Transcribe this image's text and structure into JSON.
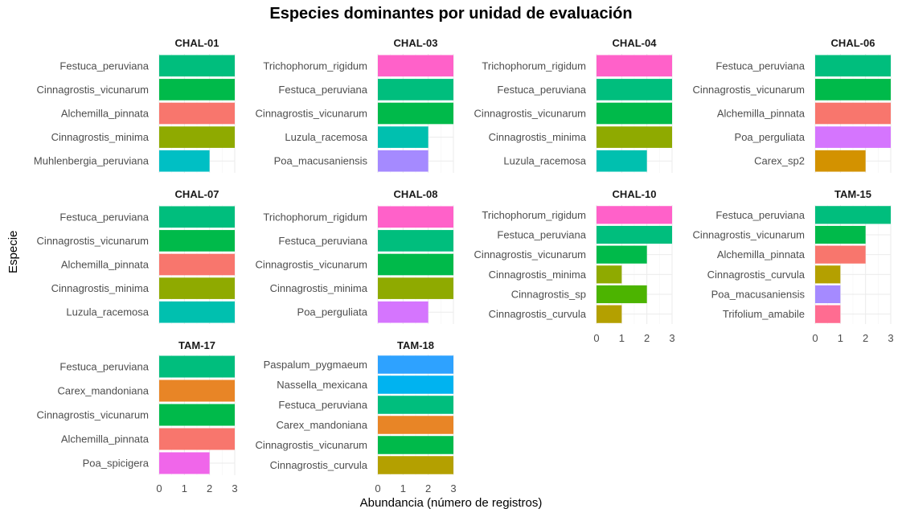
{
  "chart_data": {
    "type": "bar",
    "orientation": "horizontal",
    "title": "Especies dominantes por unidad de evaluación",
    "xlabel": "Abundancia (número de registros)",
    "ylabel": "Especie",
    "xlim": [
      0,
      3
    ],
    "x_ticks": [
      "0",
      "1",
      "2",
      "3"
    ],
    "grid": true,
    "facets": [
      {
        "name": "CHAL-01",
        "categories": [
          "Festuca_peruviana",
          "Cinnagrostis_vicunarum",
          "Alchemilla_pinnata",
          "Cinnagrostis_minima",
          "Muhlenbergia_peruviana"
        ],
        "values": [
          3,
          3,
          3,
          3,
          2
        ]
      },
      {
        "name": "CHAL-03",
        "categories": [
          "Trichophorum_rigidum",
          "Festuca_peruviana",
          "Cinnagrostis_vicunarum",
          "Luzula_racemosa",
          "Poa_macusaniensis"
        ],
        "values": [
          3,
          3,
          3,
          2,
          2
        ]
      },
      {
        "name": "CHAL-04",
        "categories": [
          "Trichophorum_rigidum",
          "Festuca_peruviana",
          "Cinnagrostis_vicunarum",
          "Cinnagrostis_minima",
          "Luzula_racemosa"
        ],
        "values": [
          3,
          3,
          3,
          3,
          2
        ]
      },
      {
        "name": "CHAL-06",
        "categories": [
          "Festuca_peruviana",
          "Cinnagrostis_vicunarum",
          "Alchemilla_pinnata",
          "Poa_perguliata",
          "Carex_sp2"
        ],
        "values": [
          3,
          3,
          3,
          3,
          2
        ]
      },
      {
        "name": "CHAL-07",
        "categories": [
          "Festuca_peruviana",
          "Cinnagrostis_vicunarum",
          "Alchemilla_pinnata",
          "Cinnagrostis_minima",
          "Luzula_racemosa"
        ],
        "values": [
          3,
          3,
          3,
          3,
          3
        ]
      },
      {
        "name": "CHAL-08",
        "categories": [
          "Trichophorum_rigidum",
          "Festuca_peruviana",
          "Cinnagrostis_vicunarum",
          "Cinnagrostis_minima",
          "Poa_perguliata"
        ],
        "values": [
          3,
          3,
          3,
          3,
          2
        ]
      },
      {
        "name": "CHAL-10",
        "categories": [
          "Trichophorum_rigidum",
          "Festuca_peruviana",
          "Cinnagrostis_vicunarum",
          "Cinnagrostis_minima",
          "Cinnagrostis_sp",
          "Cinnagrostis_curvula"
        ],
        "values": [
          3,
          3,
          2,
          1,
          2,
          1
        ]
      },
      {
        "name": "TAM-15",
        "categories": [
          "Festuca_peruviana",
          "Cinnagrostis_vicunarum",
          "Alchemilla_pinnata",
          "Cinnagrostis_curvula",
          "Poa_macusaniensis",
          "Trifolium_amabile"
        ],
        "values": [
          3,
          2,
          2,
          1,
          1,
          1
        ]
      },
      {
        "name": "TAM-17",
        "categories": [
          "Festuca_peruviana",
          "Carex_mandoniana",
          "Cinnagrostis_vicunarum",
          "Alchemilla_pinnata",
          "Poa_spicigera"
        ],
        "values": [
          3,
          3,
          3,
          3,
          2
        ]
      },
      {
        "name": "TAM-18",
        "categories": [
          "Paspalum_pygmaeum",
          "Nassella_mexicana",
          "Festuca_peruviana",
          "Carex_mandoniana",
          "Cinnagrostis_vicunarum",
          "Cinnagrostis_curvula"
        ],
        "values": [
          3,
          3,
          3,
          3,
          3,
          3
        ]
      }
    ],
    "species_colors": {
      "Festuca_peruviana": "#00BE7D",
      "Cinnagrostis_vicunarum": "#00BA4A",
      "Alchemilla_pinnata": "#F8766D",
      "Cinnagrostis_minima": "#8FAA00",
      "Muhlenbergia_peruviana": "#00BFC4",
      "Trichophorum_rigidum": "#FF61C9",
      "Luzula_racemosa": "#00C0AF",
      "Poa_macusaniensis": "#A58AFF",
      "Poa_perguliata": "#D575FE",
      "Carex_sp2": "#D39200",
      "Cinnagrostis_sp": "#4CB400",
      "Cinnagrostis_curvula": "#B4A000",
      "Trifolium_amabile": "#FF6C91",
      "Carex_mandoniana": "#E88526",
      "Poa_spicigera": "#F066EA",
      "Paspalum_pygmaeum": "#2EA2FF",
      "Nassella_mexicana": "#00B3F0"
    }
  }
}
